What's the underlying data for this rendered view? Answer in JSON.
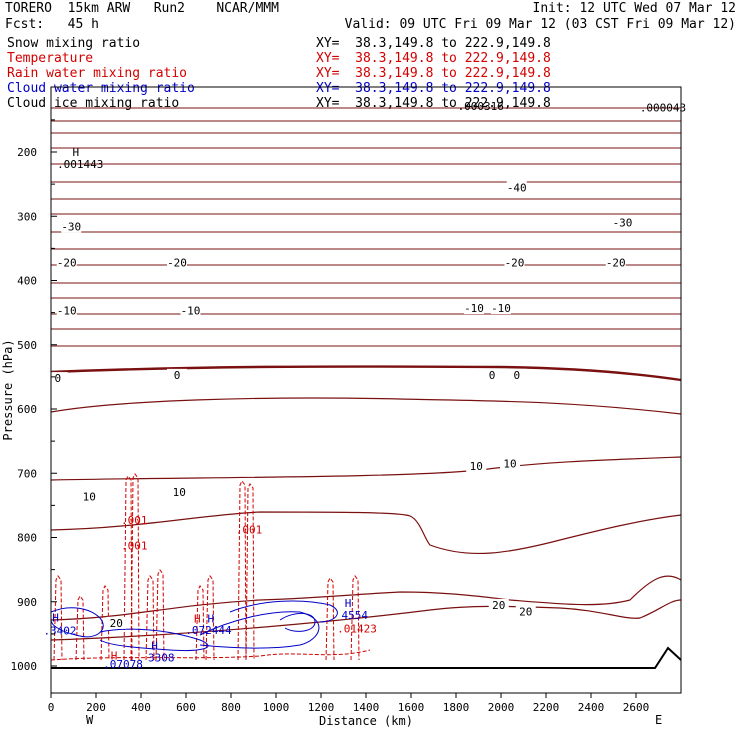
{
  "header": {
    "model": "TORERO  15km ARW   Run2    NCAR/MMM",
    "init": "Init: 12 UTC Wed 07 Mar 12",
    "fcst": "Fcst:   45 h",
    "valid": "Valid: 09 UTC Fri 09 Mar 12 (03 CST Fri 09 Mar 12)"
  },
  "fields": [
    {
      "label": "Snow mixing ratio",
      "xy": "XY=  38.3,149.8 to 222.9,149.8",
      "color": "#000000"
    },
    {
      "label": "Temperature",
      "xy": "XY=  38.3,149.8 to 222.9,149.8",
      "color": "#d40000"
    },
    {
      "label": "Rain water mixing ratio",
      "xy": "XY=  38.3,149.8 to 222.9,149.8",
      "color": "#d40000"
    },
    {
      "label": "Cloud water mixing ratio",
      "xy": "XY=  38.3,149.8 to 222.9,149.8",
      "color": "#0000c8"
    },
    {
      "label": "Cloud ice mixing ratio",
      "xy": "XY=  38.3,149.8 to 222.9,149.8",
      "color": "#000000"
    }
  ],
  "chart_data": {
    "type": "contour-cross-section",
    "xlabel": "Distance (km)",
    "ylabel": "Pressure (hPa)",
    "xlim": [
      0,
      2800
    ],
    "ylim": [
      1050,
      100
    ],
    "x_ticks": [
      0,
      200,
      400,
      600,
      800,
      1000,
      1200,
      1400,
      1600,
      1800,
      2000,
      2200,
      2400,
      2600
    ],
    "y_ticks": [
      200,
      300,
      400,
      500,
      600,
      700,
      800,
      900,
      1000
    ],
    "x_end_labels": {
      "west": "W",
      "east": "E"
    },
    "temperature_contour_labels": [
      {
        "text": "-40",
        "x": 2070,
        "p": 258
      },
      {
        "text": "-30",
        "x": 90,
        "p": 319
      },
      {
        "text": "-30",
        "x": 2540,
        "p": 313
      },
      {
        "text": "-20",
        "x": 70,
        "p": 375
      },
      {
        "text": "-20",
        "x": 560,
        "p": 375
      },
      {
        "text": "-20",
        "x": 2060,
        "p": 375
      },
      {
        "text": "-20",
        "x": 2510,
        "p": 375
      },
      {
        "text": "-10",
        "x": 70,
        "p": 450
      },
      {
        "text": "-10",
        "x": 620,
        "p": 450
      },
      {
        "text": "-10",
        "x": 1880,
        "p": 446
      },
      {
        "text": "-10",
        "x": 2000,
        "p": 446
      },
      {
        "text": "0",
        "x": 30,
        "p": 555
      },
      {
        "text": "0",
        "x": 560,
        "p": 550
      },
      {
        "text": "0",
        "x": 1960,
        "p": 550
      },
      {
        "text": "0",
        "x": 2070,
        "p": 550
      },
      {
        "text": "10",
        "x": 170,
        "p": 739
      },
      {
        "text": "10",
        "x": 570,
        "p": 732
      },
      {
        "text": "10",
        "x": 1890,
        "p": 692
      },
      {
        "text": "10",
        "x": 2040,
        "p": 688
      },
      {
        "text": "20",
        "x": 290,
        "p": 936
      },
      {
        "text": "20",
        "x": 1990,
        "p": 908
      },
      {
        "text": "20",
        "x": 2110,
        "p": 918
      }
    ],
    "extrema_labels": [
      {
        "text": "H",
        "x": 110,
        "p": 206,
        "color": "#000000"
      },
      {
        "text": ".001443",
        "x": 130,
        "p": 225,
        "color": "#000000"
      },
      {
        "text": ".000043",
        "x": 2720,
        "p": 137,
        "color": "#000000"
      },
      {
        "text": ".000316",
        "x": 1910,
        "p": 135,
        "color": "#000000"
      },
      {
        "text": ".001",
        "x": 370,
        "p": 779,
        "color": "#d40000"
      },
      {
        "text": ".001",
        "x": 370,
        "p": 819,
        "color": "#d40000"
      },
      {
        "text": ".001",
        "x": 880,
        "p": 794,
        "color": "#d40000"
      },
      {
        "text": "H",
        "x": 20,
        "p": 931,
        "color": "#0000c8"
      },
      {
        "text": ".3402",
        "x": 40,
        "p": 951,
        "color": "#0000c8"
      },
      {
        "text": "H",
        "x": 280,
        "p": 990,
        "color": "#d40000"
      },
      {
        "text": ".07078",
        "x": 320,
        "p": 1003,
        "color": "#0000c8"
      },
      {
        "text": "H",
        "x": 460,
        "p": 974,
        "color": "#0000c8"
      },
      {
        "text": "3308",
        "x": 490,
        "p": 993,
        "color": "#0000c8"
      },
      {
        "text": "H",
        "x": 650,
        "p": 932,
        "color": "#d40000"
      },
      {
        "text": "H",
        "x": 710,
        "p": 932,
        "color": "#0000c8"
      },
      {
        "text": ".072444",
        "x": 700,
        "p": 950,
        "color": "#0000c8"
      },
      {
        "text": "H",
        "x": 1320,
        "p": 908,
        "color": "#0000c8"
      },
      {
        "text": "4554",
        "x": 1350,
        "p": 927,
        "color": "#0000c8"
      },
      {
        "text": ".01423",
        "x": 1360,
        "p": 948,
        "color": "#d40000"
      }
    ],
    "terrain_surface_hpa": 1008
  }
}
